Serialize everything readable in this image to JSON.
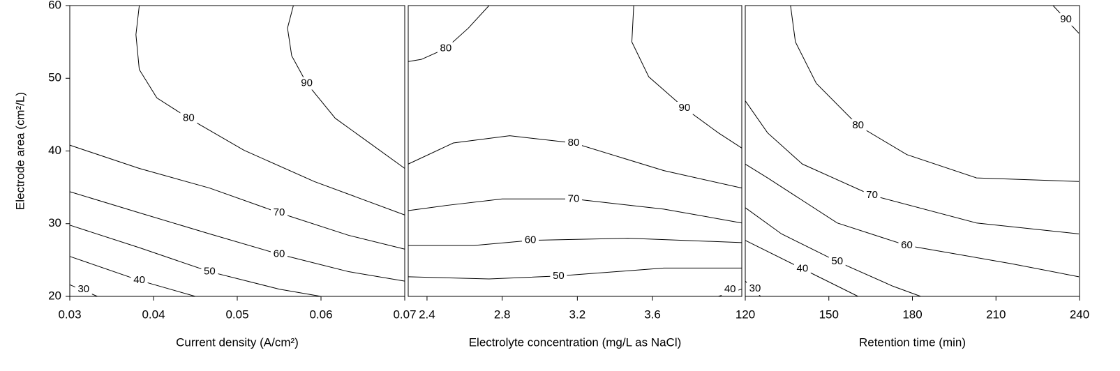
{
  "chart_data": [
    {
      "type": "contour",
      "y_label": "Electrode area (cm²/L)",
      "x_label": "Current density (A/cm²)",
      "xlim": [
        0.03,
        0.07
      ],
      "xticks": [
        0.03,
        0.04,
        0.05,
        0.06,
        0.07
      ],
      "ylim": [
        20,
        60
      ],
      "yticks": [
        20,
        30,
        40,
        50,
        60
      ],
      "lines": [
        {
          "level": 90,
          "x": [
            0.0567,
            0.056,
            0.0565,
            0.0583,
            0.0617,
            0.0658,
            0.07
          ],
          "y": [
            60,
            56.9,
            53.1,
            49.3,
            44.5,
            41.1,
            37.6
          ]
        },
        {
          "level": 80,
          "x": [
            0.0383,
            0.0379,
            0.0383,
            0.0404,
            0.0442,
            0.0508,
            0.0592,
            0.07
          ],
          "y": [
            60,
            56.0,
            51.2,
            47.3,
            44.5,
            40.1,
            35.8,
            31.2
          ]
        },
        {
          "level": 70,
          "x": [
            0.03,
            0.0383,
            0.0467,
            0.055,
            0.0633,
            0.07
          ],
          "y": [
            40.8,
            37.6,
            34.9,
            31.5,
            28.4,
            26.5
          ]
        },
        {
          "level": 60,
          "x": [
            0.03,
            0.0383,
            0.0467,
            0.055,
            0.0633,
            0.07
          ],
          "y": [
            34.4,
            31.5,
            28.6,
            25.8,
            23.4,
            22.1
          ]
        },
        {
          "level": 50,
          "x": [
            0.03,
            0.0383,
            0.0467,
            0.055,
            0.06
          ],
          "y": [
            29.8,
            26.7,
            23.4,
            21.0,
            20
          ]
        },
        {
          "level": 40,
          "x": [
            0.03,
            0.0383,
            0.045
          ],
          "y": [
            25.5,
            22.2,
            20
          ]
        },
        {
          "level": 30,
          "x": [
            0.03,
            0.0333
          ],
          "y": [
            21.6,
            20
          ]
        }
      ]
    },
    {
      "type": "contour",
      "x_label": "Electrolyte concentration (mg/L as NaCl)",
      "xlim": [
        2.3,
        4.075
      ],
      "xticks": [
        2.4,
        2.8,
        3.2,
        3.6
      ],
      "ylim": [
        20,
        60
      ],
      "lines": [
        {
          "level": 90,
          "x": [
            3.5,
            3.49,
            3.58,
            3.77,
            3.95,
            4.075
          ],
          "y": [
            60,
            55.0,
            50.2,
            45.9,
            42.5,
            40.4
          ]
        },
        {
          "level": 80,
          "x": [
            2.3,
            2.37,
            2.5,
            2.62,
            2.73
          ],
          "y": [
            52.3,
            52.6,
            54.1,
            56.9,
            60
          ]
        },
        {
          "level": 80,
          "x": [
            2.3,
            2.54,
            2.84,
            3.18,
            3.66,
            4.075
          ],
          "y": [
            38.2,
            41.1,
            42.1,
            41.1,
            37.3,
            34.9
          ]
        },
        {
          "level": 70,
          "x": [
            2.3,
            2.5,
            2.8,
            3.18,
            3.66,
            4.075
          ],
          "y": [
            31.8,
            32.5,
            33.4,
            33.4,
            32.0,
            30.1
          ]
        },
        {
          "level": 60,
          "x": [
            2.3,
            2.65,
            2.95,
            3.47,
            4.075
          ],
          "y": [
            27.0,
            27.0,
            27.7,
            28.0,
            27.4
          ]
        },
        {
          "level": 50,
          "x": [
            2.3,
            2.73,
            3.1,
            3.66,
            4.075
          ],
          "y": [
            22.7,
            22.4,
            22.8,
            23.9,
            23.9
          ]
        },
        {
          "level": 40,
          "x": [
            3.95,
            4.075
          ],
          "y": [
            20,
            21.0
          ]
        }
      ]
    },
    {
      "type": "contour",
      "x_label": "Retention time (min)",
      "xlim": [
        120,
        240
      ],
      "xticks": [
        120,
        150,
        180,
        210,
        240
      ],
      "ylim": [
        20,
        60
      ],
      "lines": [
        {
          "level": 90,
          "x": [
            230.5,
            239.75
          ],
          "y": [
            60,
            56.2
          ]
        },
        {
          "level": 80,
          "x": [
            136.25,
            138,
            145.5,
            160.5,
            178,
            203,
            239.75
          ],
          "y": [
            60,
            55.0,
            49.3,
            43.5,
            39.5,
            36.3,
            35.8
          ]
        },
        {
          "level": 70,
          "x": [
            120,
            128,
            140.5,
            165.5,
            203,
            239.75
          ],
          "y": [
            46.9,
            42.5,
            38.2,
            33.9,
            30.1,
            28.6
          ]
        },
        {
          "level": 60,
          "x": [
            120,
            128,
            153,
            178,
            215.5,
            239.75
          ],
          "y": [
            38.2,
            36.3,
            30.1,
            27.0,
            24.5,
            22.7
          ]
        },
        {
          "level": 50,
          "x": [
            120,
            133,
            153,
            173,
            183
          ],
          "y": [
            32.2,
            28.6,
            24.8,
            21.4,
            20
          ]
        },
        {
          "level": 40,
          "x": [
            120,
            140.5,
            160.5
          ],
          "y": [
            27.7,
            23.8,
            20
          ]
        },
        {
          "level": 30,
          "x": [
            120,
            125.5
          ],
          "y": [
            22.1,
            20
          ]
        }
      ]
    }
  ]
}
